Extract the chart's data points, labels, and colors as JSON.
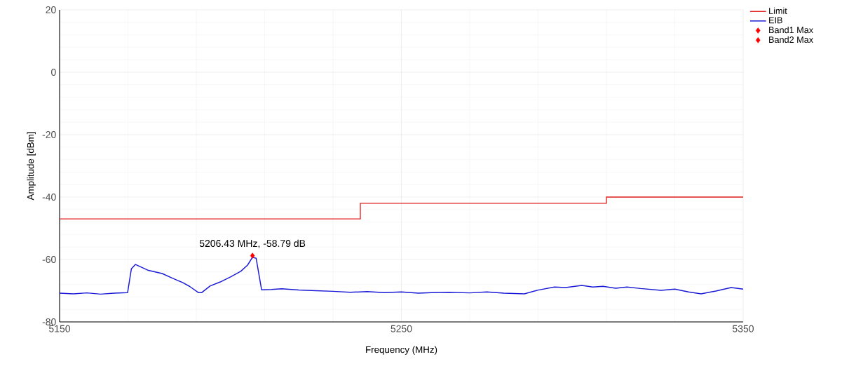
{
  "chart_data": {
    "type": "line",
    "xlabel": "Frequency (MHz)",
    "ylabel": "Amplitude [dBm]",
    "xlim": [
      5150,
      5350
    ],
    "xticks": [
      5150,
      5250,
      5350
    ],
    "ylim": [
      -80,
      20
    ],
    "yticks": [
      -80,
      -60,
      -40,
      -20,
      0,
      20
    ],
    "grid": true,
    "legend": "top right",
    "series": [
      {
        "name": "Limit",
        "type": "step",
        "color": "#e0201c",
        "x": [
          5150,
          5238,
          5310,
          5350
        ],
        "values": [
          -47,
          -42,
          -40,
          -40
        ]
      },
      {
        "name": "EIB",
        "color": "#1a1ad6",
        "x": [
          5150,
          5154,
          5158,
          5162,
          5166,
          5169.9,
          5171,
          5172.2,
          5174,
          5176,
          5180,
          5183,
          5186,
          5188,
          5190.6,
          5191.6,
          5194,
          5197,
          5200,
          5203,
          5205,
          5206.43,
          5207.5,
          5209.1,
          5212,
          5215,
          5220,
          5225,
          5230,
          5235,
          5240,
          5245,
          5250,
          5255,
          5259,
          5264,
          5270,
          5275,
          5280,
          5286,
          5290,
          5294.8,
          5298,
          5302.8,
          5306,
          5309,
          5312.7,
          5316,
          5320,
          5326,
          5330,
          5334,
          5337.7,
          5342,
          5346.5,
          5350
        ],
        "values": [
          -70.8,
          -71,
          -70.7,
          -71.1,
          -70.8,
          -70.6,
          -63,
          -61.6,
          -62.5,
          -63.5,
          -64.5,
          -66,
          -67.4,
          -68.6,
          -70.6,
          -70.6,
          -68.5,
          -67.2,
          -65.6,
          -63.8,
          -61.8,
          -59.3,
          -59.6,
          -69.7,
          -69.6,
          -69.4,
          -69.8,
          -70,
          -70.2,
          -70.5,
          -70.3,
          -70.6,
          -70.4,
          -70.8,
          -70.6,
          -70.5,
          -70.7,
          -70.4,
          -70.8,
          -71,
          -69.8,
          -68.8,
          -69,
          -68.3,
          -68.8,
          -68.6,
          -69.2,
          -68.8,
          -69.3,
          -69.9,
          -69.5,
          -70.4,
          -71,
          -70.1,
          -69,
          -69.5
        ]
      },
      {
        "name": "Band1 Max",
        "type": "scatter",
        "marker": "diamond",
        "color": "#ff0000",
        "x": [
          5206.43
        ],
        "values": [
          -58.79
        ]
      },
      {
        "name": "Band2 Max",
        "type": "scatter",
        "marker": "diamond",
        "color": "#ff0000"
      }
    ],
    "annotations": [
      {
        "text": "5206.43 MHz, -58.79 dB",
        "x": 5206.43,
        "y": -58.79
      }
    ]
  }
}
